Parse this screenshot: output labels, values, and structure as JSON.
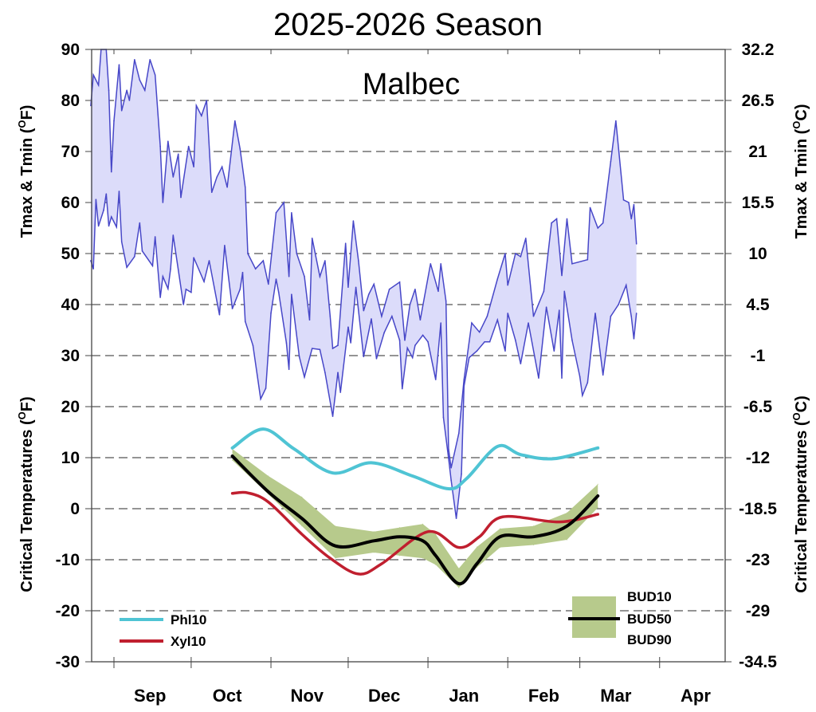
{
  "chart_data": {
    "type": "area",
    "title": "2025-2026 Season",
    "subtitle": "Malbec",
    "xlim": [
      "2025-08-23",
      "2026-04-26"
    ],
    "ylim": [
      -30,
      90
    ],
    "x_tick_labels": [
      {
        "label": "Sep",
        "date": "2025-09-15"
      },
      {
        "label": "Oct",
        "date": "2025-10-15"
      },
      {
        "label": "Nov",
        "date": "2025-11-15"
      },
      {
        "label": "Dec",
        "date": "2025-12-15"
      },
      {
        "label": "Jan",
        "date": "2026-01-15"
      },
      {
        "label": "Feb",
        "date": "2026-02-15"
      },
      {
        "label": "Mar",
        "date": "2026-03-15"
      },
      {
        "label": "Apr",
        "date": "2026-04-15"
      }
    ],
    "month_ticks": [
      "2025-09-01",
      "2025-10-01",
      "2025-11-01",
      "2025-12-01",
      "2026-01-01",
      "2026-02-01",
      "2026-03-01",
      "2026-04-01"
    ],
    "y_ticks_left": [
      90,
      80,
      70,
      60,
      50,
      40,
      30,
      20,
      10,
      0,
      -10,
      -20,
      -30
    ],
    "y_ticks_right": [
      "32.2",
      "26.5",
      "21",
      "15.5",
      "10",
      "4.5",
      "-1",
      "-6.5",
      "-12",
      "-18.5",
      "-23",
      "-29",
      "-34.5"
    ],
    "grid": "horizontal dashed",
    "ylabel_left_top": {
      "text": "Tmax & Tmin (",
      "sup": "O",
      "unit": "F)"
    },
    "ylabel_left_bottom": {
      "text": "Critical Temperatures (",
      "sup": "O",
      "unit": "F)"
    },
    "ylabel_right_top": {
      "text": "Tmax & Tmin (",
      "sup": "O",
      "unit": "C)"
    },
    "ylabel_right_bottom": {
      "text": "Critical Temperatures (",
      "sup": "O",
      "unit": "C)"
    },
    "colors": {
      "temp_line": "#4747c8",
      "temp_fill": "#dcdcfa",
      "phl": "#4fc4d4",
      "xyl": "#c01f2f",
      "bud_band": "#b7ca8c",
      "bud50": "#000000"
    },
    "legend": {
      "placement": "bottom",
      "phl": "Phl10",
      "xyl": "Xyl10",
      "bud10": "BUD10",
      "bud50": "BUD50",
      "bud90": "BUD90"
    },
    "tmax": [
      [
        "2025-08-23",
        79
      ],
      [
        "2025-08-24",
        85
      ],
      [
        "2025-08-26",
        83
      ],
      [
        "2025-08-27",
        90
      ],
      [
        "2025-08-29",
        90
      ],
      [
        "2025-08-30",
        82
      ],
      [
        "2025-08-31",
        66
      ],
      [
        "2025-09-01",
        76
      ],
      [
        "2025-09-03",
        87
      ],
      [
        "2025-09-04",
        78
      ],
      [
        "2025-09-06",
        82
      ],
      [
        "2025-09-07",
        80
      ],
      [
        "2025-09-09",
        88
      ],
      [
        "2025-09-11",
        84
      ],
      [
        "2025-09-13",
        82
      ],
      [
        "2025-09-15",
        88
      ],
      [
        "2025-09-17",
        85
      ],
      [
        "2025-09-19",
        71
      ],
      [
        "2025-09-20",
        60
      ],
      [
        "2025-09-22",
        72
      ],
      [
        "2025-09-24",
        65
      ],
      [
        "2025-09-26",
        69.5
      ],
      [
        "2025-09-27",
        61
      ],
      [
        "2025-09-30",
        71
      ],
      [
        "2025-10-02",
        67
      ],
      [
        "2025-10-03",
        79
      ],
      [
        "2025-10-05",
        77
      ],
      [
        "2025-10-07",
        80
      ],
      [
        "2025-10-09",
        62
      ],
      [
        "2025-10-11",
        65
      ],
      [
        "2025-10-13",
        67
      ],
      [
        "2025-10-15",
        63
      ],
      [
        "2025-10-18",
        76
      ],
      [
        "2025-10-20",
        70.5
      ],
      [
        "2025-10-22",
        63
      ],
      [
        "2025-10-23",
        50
      ],
      [
        "2025-10-26",
        47
      ],
      [
        "2025-10-29",
        48.6
      ],
      [
        "2025-10-31",
        44
      ],
      [
        "2025-11-03",
        58
      ],
      [
        "2025-11-06",
        60
      ],
      [
        "2025-11-08",
        45.5
      ],
      [
        "2025-11-09",
        58
      ],
      [
        "2025-11-11",
        50
      ],
      [
        "2025-11-14",
        45.5
      ],
      [
        "2025-11-16",
        37
      ],
      [
        "2025-11-17",
        53
      ],
      [
        "2025-11-20",
        45.5
      ],
      [
        "2025-11-22",
        48.6
      ],
      [
        "2025-11-24",
        37.7
      ],
      [
        "2025-11-25",
        31.4
      ],
      [
        "2025-11-27",
        32
      ],
      [
        "2025-11-30",
        52
      ],
      [
        "2025-12-01",
        43.4
      ],
      [
        "2025-12-03",
        56.4
      ],
      [
        "2025-12-05",
        48.6
      ],
      [
        "2025-12-07",
        38.8
      ],
      [
        "2025-12-09",
        42
      ],
      [
        "2025-12-11",
        44
      ],
      [
        "2025-12-14",
        37.7
      ],
      [
        "2025-12-17",
        43
      ],
      [
        "2025-12-21",
        44.4
      ],
      [
        "2025-12-23",
        33
      ],
      [
        "2025-12-25",
        40
      ],
      [
        "2025-12-27",
        43
      ],
      [
        "2025-12-29",
        37
      ],
      [
        "2026-01-02",
        48
      ],
      [
        "2026-01-05",
        42.6
      ],
      [
        "2026-01-06",
        48
      ],
      [
        "2026-01-08",
        40.7
      ],
      [
        "2026-01-09",
        11.7
      ],
      [
        "2026-01-10",
        8
      ],
      [
        "2026-01-13",
        14.8
      ],
      [
        "2026-01-15",
        25.3
      ],
      [
        "2026-01-18",
        36.4
      ],
      [
        "2026-01-21",
        34.6
      ],
      [
        "2026-01-24",
        37.7
      ],
      [
        "2026-01-28",
        45
      ],
      [
        "2026-01-31",
        50
      ],
      [
        "2026-02-01",
        43.8
      ],
      [
        "2026-02-04",
        50
      ],
      [
        "2026-02-06",
        49.4
      ],
      [
        "2026-02-08",
        53
      ],
      [
        "2026-02-11",
        37.7
      ],
      [
        "2026-02-15",
        42.6
      ],
      [
        "2026-02-18",
        56
      ],
      [
        "2026-02-20",
        56.8
      ],
      [
        "2026-02-22",
        45.7
      ],
      [
        "2026-02-24",
        56.8
      ],
      [
        "2026-02-26",
        48
      ],
      [
        "2026-03-04",
        48.8
      ],
      [
        "2026-03-05",
        59
      ],
      [
        "2026-03-08",
        55
      ],
      [
        "2026-03-10",
        56
      ],
      [
        "2026-03-13",
        68
      ],
      [
        "2026-03-15",
        76
      ],
      [
        "2026-03-18",
        60.5
      ],
      [
        "2026-03-20",
        60
      ],
      [
        "2026-03-21",
        56.8
      ],
      [
        "2026-03-22",
        59.6
      ],
      [
        "2026-03-23",
        51.9
      ]
    ],
    "tmin": [
      [
        "2025-08-23",
        48.6
      ],
      [
        "2025-08-24",
        47
      ],
      [
        "2025-08-25",
        60.6
      ],
      [
        "2025-08-26",
        55.4
      ],
      [
        "2025-08-28",
        58.5
      ],
      [
        "2025-08-29",
        61.7
      ],
      [
        "2025-08-30",
        55.4
      ],
      [
        "2025-08-31",
        57.2
      ],
      [
        "2025-09-02",
        55.2
      ],
      [
        "2025-09-03",
        62.2
      ],
      [
        "2025-09-04",
        52.3
      ],
      [
        "2025-09-06",
        47.3
      ],
      [
        "2025-09-09",
        49.4
      ],
      [
        "2025-09-11",
        56
      ],
      [
        "2025-09-12",
        50.5
      ],
      [
        "2025-09-16",
        47.6
      ],
      [
        "2025-09-17",
        53.3
      ],
      [
        "2025-09-19",
        41.4
      ],
      [
        "2025-09-20",
        45.5
      ],
      [
        "2025-09-22",
        43.1
      ],
      [
        "2025-09-23",
        47
      ],
      [
        "2025-09-24",
        53.6
      ],
      [
        "2025-09-28",
        40
      ],
      [
        "2025-09-29",
        43
      ],
      [
        "2025-10-01",
        42.4
      ],
      [
        "2025-10-02",
        49.2
      ],
      [
        "2025-10-06",
        44.5
      ],
      [
        "2025-10-08",
        48.6
      ],
      [
        "2025-10-12",
        38
      ],
      [
        "2025-10-14",
        51.6
      ],
      [
        "2025-10-17",
        39.2
      ],
      [
        "2025-10-20",
        43
      ],
      [
        "2025-10-21",
        46.3
      ],
      [
        "2025-10-22",
        36.7
      ],
      [
        "2025-10-25",
        32
      ],
      [
        "2025-10-28",
        21.5
      ],
      [
        "2025-10-30",
        23.6
      ],
      [
        "2025-11-01",
        38.3
      ],
      [
        "2025-11-03",
        45
      ],
      [
        "2025-11-04",
        42.4
      ],
      [
        "2025-11-07",
        32.5
      ],
      [
        "2025-11-08",
        27.3
      ],
      [
        "2025-11-09",
        42
      ],
      [
        "2025-11-12",
        29.8
      ],
      [
        "2025-11-14",
        25.8
      ],
      [
        "2025-11-17",
        31.4
      ],
      [
        "2025-11-20",
        31.2
      ],
      [
        "2025-11-22",
        26.7
      ],
      [
        "2025-11-25",
        18.1
      ],
      [
        "2025-11-27",
        26.7
      ],
      [
        "2025-11-28",
        22.8
      ],
      [
        "2025-12-01",
        35.6
      ],
      [
        "2025-12-02",
        32.5
      ],
      [
        "2025-12-04",
        43.4
      ],
      [
        "2025-12-07",
        29.8
      ],
      [
        "2025-12-10",
        37.2
      ],
      [
        "2025-12-12",
        29.4
      ],
      [
        "2025-12-15",
        34.5
      ],
      [
        "2025-12-18",
        37.7
      ],
      [
        "2025-12-21",
        33
      ],
      [
        "2025-12-22",
        23.5
      ],
      [
        "2025-12-24",
        31.5
      ],
      [
        "2025-12-26",
        29.6
      ],
      [
        "2025-12-27",
        32
      ],
      [
        "2025-12-30",
        34
      ],
      [
        "2026-01-01",
        32.7
      ],
      [
        "2026-01-04",
        25.3
      ],
      [
        "2026-01-06",
        36.4
      ],
      [
        "2026-01-07",
        17.9
      ],
      [
        "2026-01-09",
        9.9
      ],
      [
        "2026-01-10",
        5.6
      ],
      [
        "2026-01-12",
        -1.9
      ],
      [
        "2026-01-14",
        6.8
      ],
      [
        "2026-01-15",
        24
      ],
      [
        "2026-01-17",
        29.6
      ],
      [
        "2026-01-20",
        30.9
      ],
      [
        "2026-01-23",
        32.7
      ],
      [
        "2026-01-25",
        32.7
      ],
      [
        "2026-01-28",
        37
      ],
      [
        "2026-01-31",
        30.9
      ],
      [
        "2026-02-01",
        38.3
      ],
      [
        "2026-02-04",
        33
      ],
      [
        "2026-02-06",
        28.4
      ],
      [
        "2026-02-09",
        36.4
      ],
      [
        "2026-02-13",
        25.6
      ],
      [
        "2026-02-16",
        39.5
      ],
      [
        "2026-02-19",
        30.9
      ],
      [
        "2026-02-21",
        38.9
      ],
      [
        "2026-02-22",
        25.6
      ],
      [
        "2026-02-23",
        42.6
      ],
      [
        "2026-02-26",
        33
      ],
      [
        "2026-03-01",
        25.9
      ],
      [
        "2026-03-02",
        22.2
      ],
      [
        "2026-03-04",
        24.7
      ],
      [
        "2026-03-07",
        38.3
      ],
      [
        "2026-03-10",
        26.2
      ],
      [
        "2026-03-13",
        37.7
      ],
      [
        "2026-03-16",
        40
      ],
      [
        "2026-03-19",
        43.8
      ],
      [
        "2026-03-21",
        37.7
      ],
      [
        "2026-03-22",
        33.3
      ],
      [
        "2026-03-23",
        38.3
      ]
    ],
    "phl10": [
      [
        "2025-10-17",
        11.9
      ],
      [
        "2025-10-29",
        15.6
      ],
      [
        "2025-11-10",
        11.7
      ],
      [
        "2025-11-25",
        7
      ],
      [
        "2025-12-10",
        9
      ],
      [
        "2025-12-26",
        6.4
      ],
      [
        "2026-01-09",
        3.9
      ],
      [
        "2026-01-16",
        5.9
      ],
      [
        "2026-01-28",
        12.2
      ],
      [
        "2026-02-06",
        10.6
      ],
      [
        "2026-02-19",
        9.8
      ],
      [
        "2026-03-08",
        11.9
      ]
    ],
    "xyl10": [
      [
        "2025-10-17",
        3
      ],
      [
        "2025-10-23",
        3.1
      ],
      [
        "2025-10-31",
        1.3
      ],
      [
        "2025-11-13",
        -5
      ],
      [
        "2025-11-24",
        -9.7
      ],
      [
        "2025-12-05",
        -12.8
      ],
      [
        "2025-12-14",
        -10.8
      ],
      [
        "2026-01-01",
        -4.5
      ],
      [
        "2026-01-13",
        -7.6
      ],
      [
        "2026-01-21",
        -5.5
      ],
      [
        "2026-01-30",
        -1.6
      ],
      [
        "2026-02-21",
        -2.6
      ],
      [
        "2026-03-08",
        -1.1
      ]
    ],
    "bud_dates": [
      "2025-10-17",
      "2025-10-31",
      "2025-11-13",
      "2025-11-26",
      "2025-12-11",
      "2025-12-21",
      "2025-12-30",
      "2026-01-04",
      "2026-01-13",
      "2026-01-20",
      "2026-01-29",
      "2026-02-11",
      "2026-02-24",
      "2026-03-08"
    ],
    "bud10": [
      11.7,
      6.4,
      2.3,
      -3.4,
      -4.5,
      -3.7,
      -3,
      -5,
      -11.7,
      -7.5,
      -3.9,
      -3.4,
      -0.8,
      4.8
    ],
    "bud50": [
      10.3,
      3.3,
      -1.9,
      -7.3,
      -6.3,
      -5.5,
      -6.3,
      -9.2,
      -14.7,
      -10.8,
      -5.5,
      -5.5,
      -3.4,
      2.5
    ],
    "bud90": [
      9.5,
      2.8,
      -3.4,
      -9.7,
      -8.6,
      -9.2,
      -9.7,
      -11,
      -15.5,
      -11.5,
      -7.6,
      -7.1,
      -6.1,
      0.2
    ]
  }
}
